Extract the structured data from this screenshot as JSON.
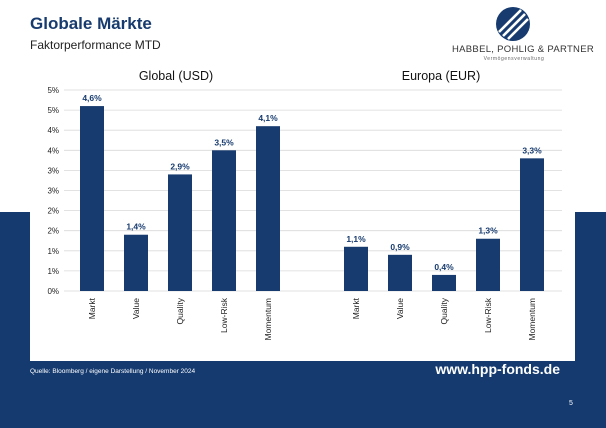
{
  "header": {
    "title": "Globale Märkte",
    "subtitle": "Faktorperformance MTD"
  },
  "logo": {
    "name": "HABBEL, POHLIG & PARTNER",
    "tagline": "Vermögensverwaltung"
  },
  "footer": {
    "source": "Quelle: Bloomberg / eigene Darstellung / November 2024",
    "url": "www.hpp-fonds.de",
    "page_number": "5"
  },
  "colors": {
    "navy": "#143a70",
    "bar": "#173b6e",
    "grid": "#d9d9d9"
  },
  "chart_data": {
    "type": "bar",
    "y_ticks": [
      "0%",
      "1%",
      "1%",
      "2%",
      "2%",
      "3%",
      "3%",
      "4%",
      "4%",
      "5%",
      "5%"
    ],
    "ylim": [
      0,
      5
    ],
    "grid": true,
    "panels": [
      {
        "title": "Global (USD)",
        "categories": [
          "Markt",
          "Value",
          "Quality",
          "Low-Risk",
          "Momentum"
        ],
        "values": [
          4.6,
          1.4,
          2.9,
          3.5,
          4.1
        ],
        "labels": [
          "4,6%",
          "1,4%",
          "2,9%",
          "3,5%",
          "4,1%"
        ]
      },
      {
        "title": "Europa (EUR)",
        "categories": [
          "Markt",
          "Value",
          "Quality",
          "Low-Risk",
          "Momentum"
        ],
        "values": [
          1.1,
          0.9,
          0.4,
          1.3,
          3.3
        ],
        "labels": [
          "1,1%",
          "0,9%",
          "0,4%",
          "1,3%",
          "3,3%"
        ]
      }
    ]
  }
}
